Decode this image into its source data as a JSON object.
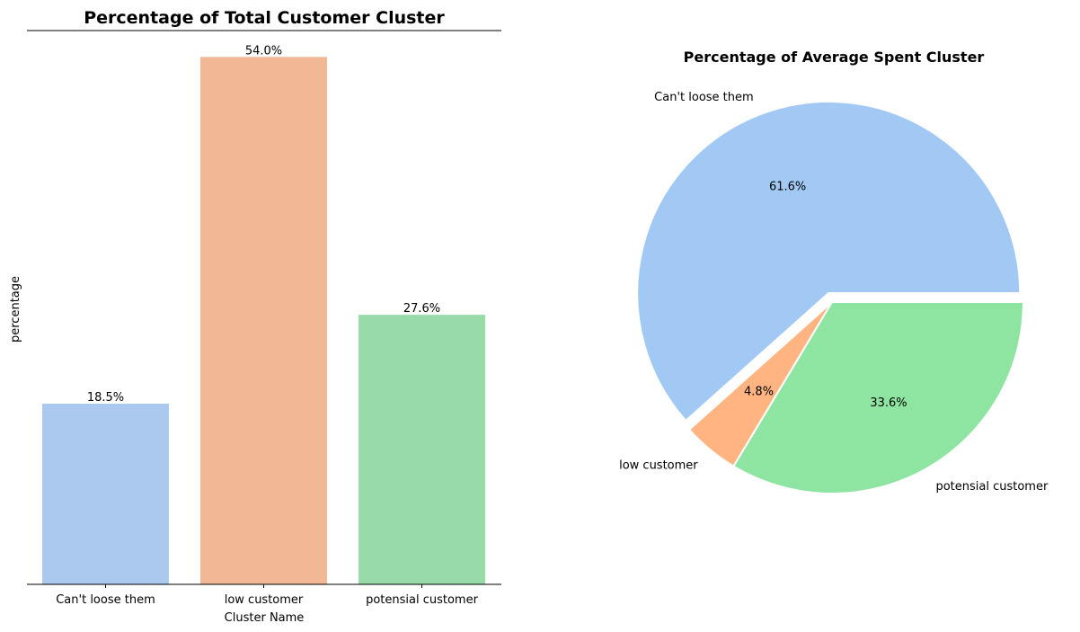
{
  "chart_data": [
    {
      "type": "bar",
      "title": "Percentage of Total Customer Cluster",
      "xlabel": "Cluster Name",
      "ylabel": "percentage",
      "ylim": [
        0,
        56.7
      ],
      "categories": [
        "Can't loose them",
        "low customer",
        "potensial customer"
      ],
      "values": [
        18.5,
        54.0,
        27.6
      ],
      "value_labels": [
        "18.5%",
        "54.0%",
        "27.6%"
      ],
      "colors": [
        "#abc9ee",
        "#f0b894",
        "#98dba8"
      ]
    },
    {
      "type": "pie",
      "title": "Percentage of Average Spent Cluster",
      "categories": [
        "Can't loose them",
        "low customer",
        "potensial customer"
      ],
      "values": [
        61.6,
        4.8,
        33.6
      ],
      "value_labels": [
        "61.6%",
        "4.8%",
        "33.6%"
      ],
      "colors": [
        "#a1c9f4",
        "#ffb482",
        "#8de5a1"
      ],
      "explode": [
        0.05,
        0,
        0
      ]
    }
  ]
}
